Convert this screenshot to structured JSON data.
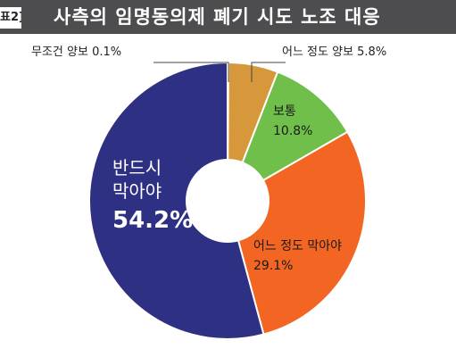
{
  "figure_tag": "표2]",
  "chart_data": {
    "type": "pie",
    "title": "사측의 임명동의제 폐기 시도 노조 대응",
    "slices": [
      {
        "label": "반드시 막아야",
        "label_lines": [
          "반드시",
          "막아야"
        ],
        "value_label": "54.2%",
        "value": 54.2,
        "color": "#2e3084"
      },
      {
        "label": "무조건 양보",
        "label_lines": [
          "무조건 양보"
        ],
        "value_label": "0.1%",
        "value": 0.1,
        "color": "#c9c9c9"
      },
      {
        "label": "어느 정도 양보",
        "label_lines": [
          "어느 정도 양보"
        ],
        "value_label": "5.8%",
        "value": 5.8,
        "color": "#d6983b"
      },
      {
        "label": "보통",
        "label_lines": [
          "보통"
        ],
        "value_label": "10.8%",
        "value": 10.8,
        "color": "#6fbf4a"
      },
      {
        "label": "어느 정도 막아야",
        "label_lines": [
          "어느 정도 막아야"
        ],
        "value_label": "29.1%",
        "value": 29.1,
        "color": "#f26522"
      }
    ]
  }
}
